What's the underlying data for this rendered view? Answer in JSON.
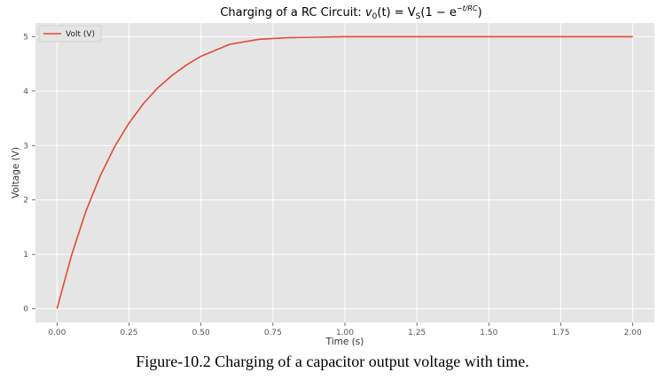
{
  "chart_data": {
    "type": "line",
    "title": "Charging of a RC Circuit: v0(t) = VS(1 − e^(−t/RC))",
    "title_parts": {
      "prefix": "Charging of a RC Circuit: ",
      "v": "v",
      "v_sub": "0",
      "mid": "(t) = V",
      "V_sub": "S",
      "paren": "(1 − e",
      "exp": "−t/RC",
      "close": ")"
    },
    "xlabel": "Time (s)",
    "ylabel": "Voltage (V)",
    "xlim": [
      -0.075,
      2.075
    ],
    "ylim": [
      -0.25,
      5.25
    ],
    "xticks": [
      0.0,
      0.25,
      0.5,
      0.75,
      1.0,
      1.25,
      1.5,
      1.75,
      2.0
    ],
    "xtick_labels": [
      "0.00",
      "0.25",
      "0.50",
      "0.75",
      "1.00",
      "1.25",
      "1.50",
      "1.75",
      "2.00"
    ],
    "yticks": [
      0,
      1,
      2,
      3,
      4,
      5
    ],
    "ytick_labels": [
      "0",
      "1",
      "2",
      "3",
      "4",
      "5"
    ],
    "grid": true,
    "legend_position": "top-left",
    "series": [
      {
        "name": "Volt (V)",
        "color": "#e24a33",
        "x": [
          0.0,
          0.05,
          0.1,
          0.15,
          0.2,
          0.25,
          0.3,
          0.35,
          0.4,
          0.45,
          0.5,
          0.6,
          0.7,
          0.8,
          0.9,
          1.0,
          1.2,
          1.4,
          1.6,
          1.8,
          2.0
        ],
        "values": [
          0.0,
          0.98,
          1.79,
          2.44,
          2.98,
          3.41,
          3.77,
          4.06,
          4.29,
          4.48,
          4.64,
          4.86,
          4.95,
          4.98,
          4.99,
          5.0,
          5.0,
          5.0,
          5.0,
          5.0,
          5.0
        ]
      }
    ]
  },
  "caption": "Figure-10.2 Charging of a capacitor output voltage with time."
}
